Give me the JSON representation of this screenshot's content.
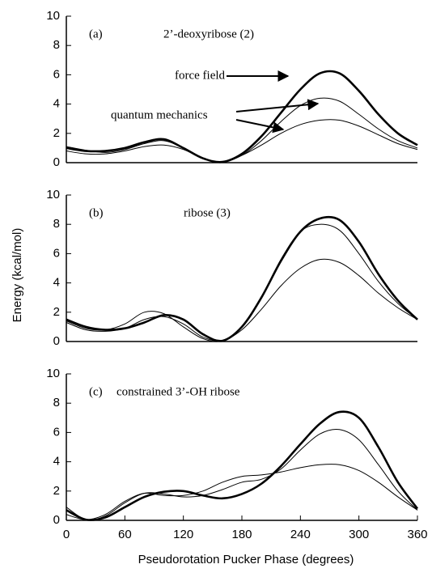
{
  "chart_data": [
    {
      "type": "line",
      "panel_label": "(a)",
      "title": "2’-deoxyribose (2)",
      "annotations": [
        "force field",
        "quantum mechanics"
      ],
      "xlim": [
        0,
        360
      ],
      "ylim": [
        0,
        10
      ],
      "yticks": [
        0,
        2,
        4,
        6,
        8,
        10
      ],
      "x": [
        0,
        20,
        40,
        60,
        80,
        100,
        120,
        140,
        160,
        180,
        200,
        220,
        240,
        260,
        280,
        300,
        320,
        340,
        360
      ],
      "series": [
        {
          "color": "#000000",
          "style": "thick",
          "values": [
            1.0,
            0.8,
            0.8,
            1.0,
            1.4,
            1.6,
            1.0,
            0.3,
            0.05,
            0.6,
            1.8,
            3.4,
            5.0,
            6.1,
            6.1,
            4.9,
            3.3,
            2.0,
            1.2
          ]
        },
        {
          "color": "#000000",
          "style": "thin",
          "values": [
            1.1,
            0.85,
            0.7,
            0.9,
            1.3,
            1.5,
            1.0,
            0.3,
            0.05,
            0.5,
            1.5,
            2.8,
            3.9,
            4.4,
            4.2,
            3.3,
            2.3,
            1.5,
            1.0
          ]
        },
        {
          "color": "#000000",
          "style": "thin",
          "values": [
            0.8,
            0.6,
            0.6,
            0.8,
            1.1,
            1.2,
            0.9,
            0.3,
            0.05,
            0.5,
            1.2,
            2.0,
            2.6,
            2.9,
            2.9,
            2.5,
            1.9,
            1.3,
            0.9
          ]
        }
      ]
    },
    {
      "type": "line",
      "panel_label": "(b)",
      "title": "ribose (3)",
      "ylabel": "Energy (kcal/mol)",
      "xlim": [
        0,
        360
      ],
      "ylim": [
        0,
        10
      ],
      "yticks": [
        0,
        2,
        4,
        6,
        8,
        10
      ],
      "x": [
        0,
        20,
        40,
        60,
        80,
        100,
        120,
        140,
        160,
        180,
        200,
        220,
        240,
        260,
        280,
        300,
        320,
        340,
        360
      ],
      "series": [
        {
          "color": "#000000",
          "style": "thick",
          "values": [
            1.5,
            1.0,
            0.8,
            0.9,
            1.3,
            1.8,
            1.5,
            0.5,
            0.05,
            1.0,
            3.0,
            5.5,
            7.5,
            8.4,
            8.3,
            6.8,
            4.6,
            2.8,
            1.5
          ]
        },
        {
          "color": "#000000",
          "style": "thin",
          "values": [
            1.4,
            0.9,
            0.8,
            1.2,
            2.0,
            1.9,
            1.0,
            0.2,
            0.05,
            1.0,
            3.0,
            5.6,
            7.5,
            8.0,
            7.6,
            6.0,
            4.1,
            2.6,
            1.5
          ]
        },
        {
          "color": "#000000",
          "style": "thin",
          "values": [
            1.3,
            0.8,
            0.7,
            0.9,
            1.5,
            1.7,
            1.2,
            0.3,
            0.05,
            0.8,
            2.2,
            3.8,
            5.0,
            5.6,
            5.4,
            4.5,
            3.3,
            2.3,
            1.5
          ]
        }
      ]
    },
    {
      "type": "line",
      "panel_label": "(c)",
      "title": "constrained 3’-OH ribose",
      "xlabel": "Pseudorotation Pucker Phase (degrees)",
      "xlim": [
        0,
        360
      ],
      "ylim": [
        0,
        10
      ],
      "yticks": [
        0,
        2,
        4,
        6,
        8,
        10
      ],
      "xticks": [
        0,
        60,
        120,
        180,
        240,
        300,
        360
      ],
      "x": [
        0,
        20,
        40,
        60,
        80,
        100,
        120,
        140,
        160,
        180,
        200,
        220,
        240,
        260,
        280,
        300,
        320,
        340,
        360
      ],
      "series": [
        {
          "color": "#000000",
          "style": "thick",
          "values": [
            0.7,
            0.05,
            0.2,
            0.9,
            1.6,
            1.95,
            2.0,
            1.7,
            1.5,
            1.8,
            2.5,
            3.7,
            5.2,
            6.6,
            7.4,
            7.0,
            5.0,
            2.6,
            0.8
          ]
        },
        {
          "color": "#000000",
          "style": "thin",
          "values": [
            0.9,
            0.05,
            0.3,
            1.2,
            1.85,
            1.8,
            1.6,
            1.7,
            2.1,
            2.6,
            2.8,
            3.5,
            4.8,
            5.9,
            6.2,
            5.5,
            3.8,
            2.0,
            0.7
          ]
        },
        {
          "color": "#000000",
          "style": "thin",
          "values": [
            0.4,
            0.05,
            0.4,
            1.3,
            1.85,
            1.7,
            1.7,
            2.0,
            2.6,
            3.0,
            3.1,
            3.3,
            3.6,
            3.8,
            3.8,
            3.4,
            2.6,
            1.6,
            0.7
          ]
        }
      ]
    }
  ]
}
